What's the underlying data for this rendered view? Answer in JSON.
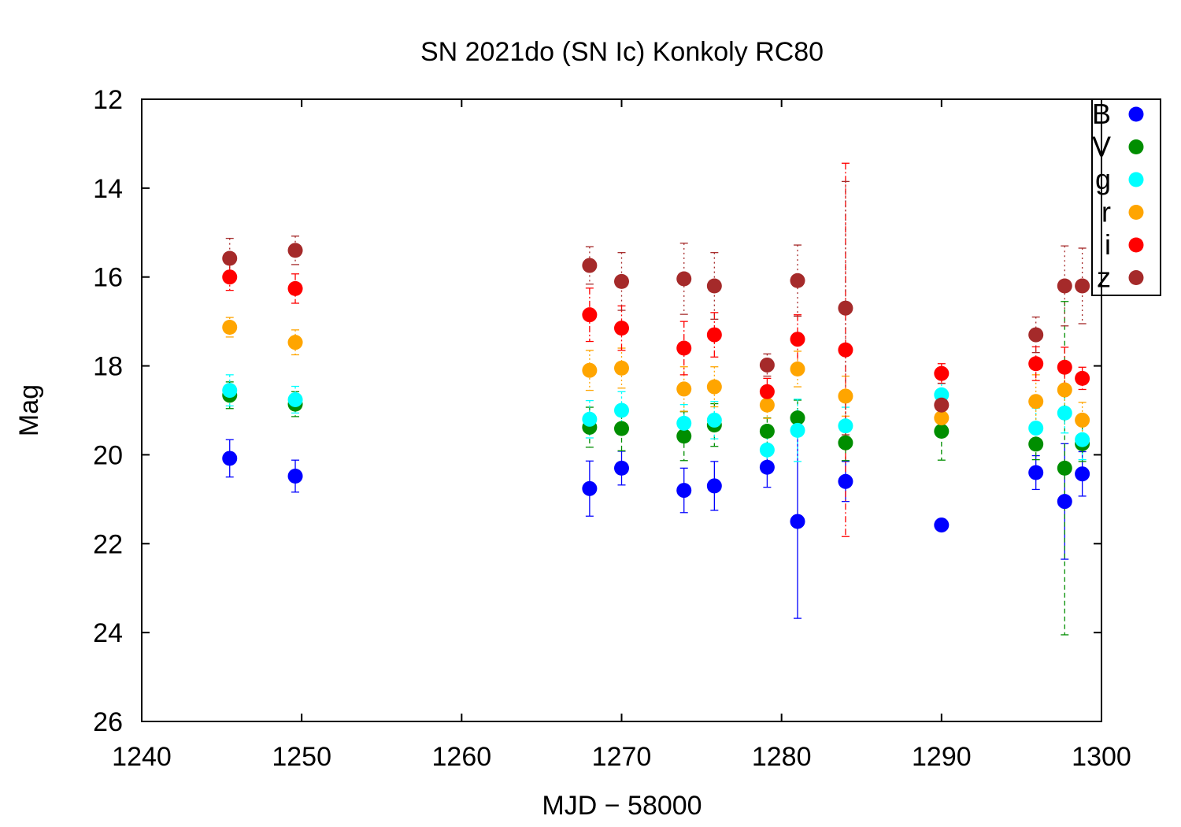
{
  "chart_data": {
    "type": "scatter",
    "title": "SN 2021do (SN Ic) Konkoly RC80",
    "xlabel": "MJD − 58000",
    "ylabel": "Mag",
    "xlim": [
      1240,
      1300
    ],
    "ylim": [
      12,
      26
    ],
    "y_inverted": true,
    "xticks": [
      "1240",
      "1250",
      "1260",
      "1270",
      "1280",
      "1290",
      "1300"
    ],
    "yticks": [
      "12",
      "14",
      "16",
      "18",
      "20",
      "22",
      "24",
      "26"
    ],
    "grid": false,
    "legend_position": "top-right",
    "series": [
      {
        "name": "B",
        "color": "#0000ff",
        "dash": "",
        "points": [
          {
            "x": 1245.5,
            "y": 20.08,
            "err": 0.42
          },
          {
            "x": 1249.6,
            "y": 20.48,
            "err": 0.36
          },
          {
            "x": 1268.0,
            "y": 20.76,
            "err": 0.62
          },
          {
            "x": 1270.0,
            "y": 20.3,
            "err": 0.38
          },
          {
            "x": 1273.9,
            "y": 20.8,
            "err": 0.5
          },
          {
            "x": 1275.8,
            "y": 20.7,
            "err": 0.55
          },
          {
            "x": 1279.1,
            "y": 20.28,
            "err": 0.45
          },
          {
            "x": 1281.0,
            "y": 21.5,
            "err": 2.18
          },
          {
            "x": 1284.0,
            "y": 20.6,
            "err": 0.45
          },
          {
            "x": 1290.0,
            "y": 21.58,
            "err": 0
          },
          {
            "x": 1295.9,
            "y": 20.4,
            "err": 0.38
          },
          {
            "x": 1297.7,
            "y": 21.05,
            "err": 1.3
          },
          {
            "x": 1298.8,
            "y": 20.43,
            "err": 0.5
          }
        ]
      },
      {
        "name": "V",
        "color": "#008e00",
        "dash": "6,4",
        "points": [
          {
            "x": 1245.5,
            "y": 18.66,
            "err": 0.3
          },
          {
            "x": 1249.6,
            "y": 18.86,
            "err": 0.28
          },
          {
            "x": 1268.0,
            "y": 19.38,
            "err": 0.45
          },
          {
            "x": 1270.0,
            "y": 19.41,
            "err": 0.5
          },
          {
            "x": 1273.9,
            "y": 19.58,
            "err": 0.55
          },
          {
            "x": 1275.8,
            "y": 19.33,
            "err": 0.48
          },
          {
            "x": 1279.1,
            "y": 19.47,
            "err": 0.3
          },
          {
            "x": 1281.0,
            "y": 19.17,
            "err": 0.4
          },
          {
            "x": 1284.0,
            "y": 19.73,
            "err": 0.4
          },
          {
            "x": 1290.0,
            "y": 19.47,
            "err": 0.65
          },
          {
            "x": 1295.9,
            "y": 19.76,
            "err": 0.35
          },
          {
            "x": 1297.7,
            "y": 20.3,
            "err": 3.75
          },
          {
            "x": 1298.8,
            "y": 19.75,
            "err": 0.4
          }
        ]
      },
      {
        "name": "g",
        "color": "#00ffff",
        "dash": "3,3",
        "points": [
          {
            "x": 1245.5,
            "y": 18.55,
            "err": 0.35
          },
          {
            "x": 1249.6,
            "y": 18.76,
            "err": 0.3
          },
          {
            "x": 1268.0,
            "y": 19.2,
            "err": 0.42
          },
          {
            "x": 1270.0,
            "y": 19.0,
            "err": 0.42
          },
          {
            "x": 1273.9,
            "y": 19.29,
            "err": 0.42
          },
          {
            "x": 1275.8,
            "y": 19.22,
            "err": 0.42
          },
          {
            "x": 1279.1,
            "y": 19.89,
            "err": 0.38
          },
          {
            "x": 1281.0,
            "y": 19.45,
            "err": 0.7
          },
          {
            "x": 1284.0,
            "y": 19.35,
            "err": 0.42
          },
          {
            "x": 1290.0,
            "y": 18.65,
            "err": 0.25
          },
          {
            "x": 1295.9,
            "y": 19.4,
            "err": 0.45
          },
          {
            "x": 1297.7,
            "y": 19.06,
            "err": 0.45
          },
          {
            "x": 1298.8,
            "y": 19.66,
            "err": 0.45
          }
        ]
      },
      {
        "name": "r",
        "color": "#ffa500",
        "dash": "2,3",
        "points": [
          {
            "x": 1245.5,
            "y": 17.13,
            "err": 0.22
          },
          {
            "x": 1249.6,
            "y": 17.47,
            "err": 0.28
          },
          {
            "x": 1268.0,
            "y": 18.1,
            "err": 0.45
          },
          {
            "x": 1270.0,
            "y": 18.05,
            "err": 0.45
          },
          {
            "x": 1273.9,
            "y": 18.52,
            "err": 0.5
          },
          {
            "x": 1275.8,
            "y": 18.47,
            "err": 0.45
          },
          {
            "x": 1279.1,
            "y": 18.88,
            "err": 0.3
          },
          {
            "x": 1281.0,
            "y": 18.07,
            "err": 0.4
          },
          {
            "x": 1284.0,
            "y": 18.68,
            "err": 0.45
          },
          {
            "x": 1290.0,
            "y": 19.17,
            "err": 0.25
          },
          {
            "x": 1295.9,
            "y": 18.8,
            "err": 0.6
          },
          {
            "x": 1297.7,
            "y": 18.54,
            "err": 0.5
          },
          {
            "x": 1298.8,
            "y": 19.22,
            "err": 0.4
          }
        ]
      },
      {
        "name": "i",
        "color": "#ff0000",
        "dash": "8,3,2,3",
        "points": [
          {
            "x": 1245.5,
            "y": 16.0,
            "err": 0.3
          },
          {
            "x": 1249.6,
            "y": 16.26,
            "err": 0.33
          },
          {
            "x": 1268.0,
            "y": 16.85,
            "err": 0.6
          },
          {
            "x": 1270.0,
            "y": 17.15,
            "err": 0.5
          },
          {
            "x": 1273.9,
            "y": 17.6,
            "err": 0.6
          },
          {
            "x": 1275.8,
            "y": 17.3,
            "err": 0.5
          },
          {
            "x": 1279.1,
            "y": 18.58,
            "err": 0.3
          },
          {
            "x": 1281.0,
            "y": 17.4,
            "err": 0.55
          },
          {
            "x": 1284.0,
            "y": 17.64,
            "err": 4.2
          },
          {
            "x": 1290.0,
            "y": 18.17,
            "err": 0.22
          },
          {
            "x": 1295.9,
            "y": 17.95,
            "err": 0.38
          },
          {
            "x": 1297.7,
            "y": 18.03,
            "err": 0.45
          },
          {
            "x": 1298.8,
            "y": 18.28,
            "err": 0.25
          }
        ]
      },
      {
        "name": "z",
        "color": "#a52a2a",
        "dash": "2,4",
        "points": [
          {
            "x": 1245.5,
            "y": 15.58,
            "err": 0.45
          },
          {
            "x": 1249.6,
            "y": 15.4,
            "err": 0.32
          },
          {
            "x": 1268.0,
            "y": 15.74,
            "err": 0.42
          },
          {
            "x": 1270.0,
            "y": 16.1,
            "err": 0.65
          },
          {
            "x": 1273.9,
            "y": 16.04,
            "err": 0.8
          },
          {
            "x": 1275.8,
            "y": 16.2,
            "err": 0.75
          },
          {
            "x": 1279.1,
            "y": 17.98,
            "err": 0.25
          },
          {
            "x": 1281.0,
            "y": 16.08,
            "err": 0.8
          },
          {
            "x": 1284.0,
            "y": 16.7,
            "err": 2.85
          },
          {
            "x": 1290.0,
            "y": 18.88,
            "err": 0.25
          },
          {
            "x": 1295.9,
            "y": 17.3,
            "err": 0.4
          },
          {
            "x": 1297.7,
            "y": 16.2,
            "err": 0.9
          },
          {
            "x": 1298.8,
            "y": 16.2,
            "err": 0.85
          }
        ]
      }
    ]
  }
}
